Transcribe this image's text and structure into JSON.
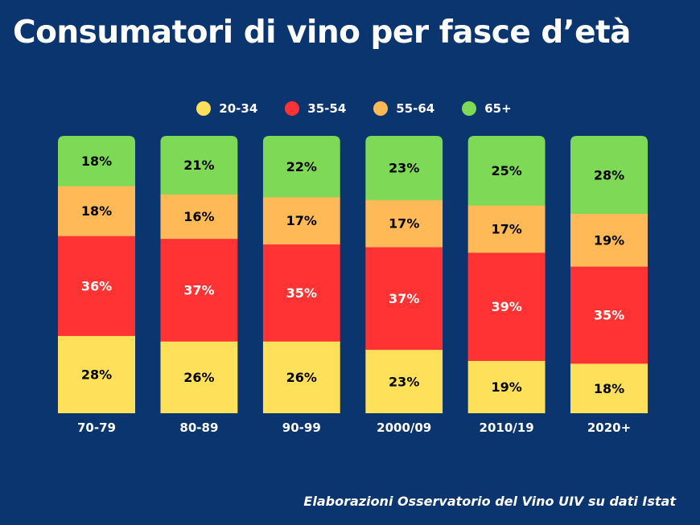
{
  "chart_data": {
    "type": "bar",
    "stacked": true,
    "title": "Consumatori di vino per fasce d’età",
    "categories": [
      "70-79",
      "80-89",
      "90-99",
      "2000/09",
      "2010/19",
      "2020+"
    ],
    "series": [
      {
        "name": "20-34",
        "color": "#ffe05a",
        "label_color": "#000000",
        "values": [
          28,
          26,
          26,
          23,
          19,
          18
        ]
      },
      {
        "name": "35-54",
        "color": "#ff3333",
        "label_color": "#ffffff",
        "values": [
          36,
          37,
          35,
          37,
          39,
          35
        ]
      },
      {
        "name": "55-64",
        "color": "#ffb957",
        "label_color": "#000000",
        "values": [
          18,
          16,
          17,
          17,
          17,
          19
        ]
      },
      {
        "name": "65+",
        "color": "#7ed957",
        "label_color": "#000000",
        "values": [
          18,
          21,
          22,
          23,
          25,
          28
        ]
      }
    ],
    "value_suffix": "%",
    "ylim": [
      0,
      100
    ],
    "legend_position": "top",
    "grid": false,
    "background_color": "#0b356f"
  },
  "source": "Elaborazioni Osservatorio del Vino UIV su dati Istat"
}
